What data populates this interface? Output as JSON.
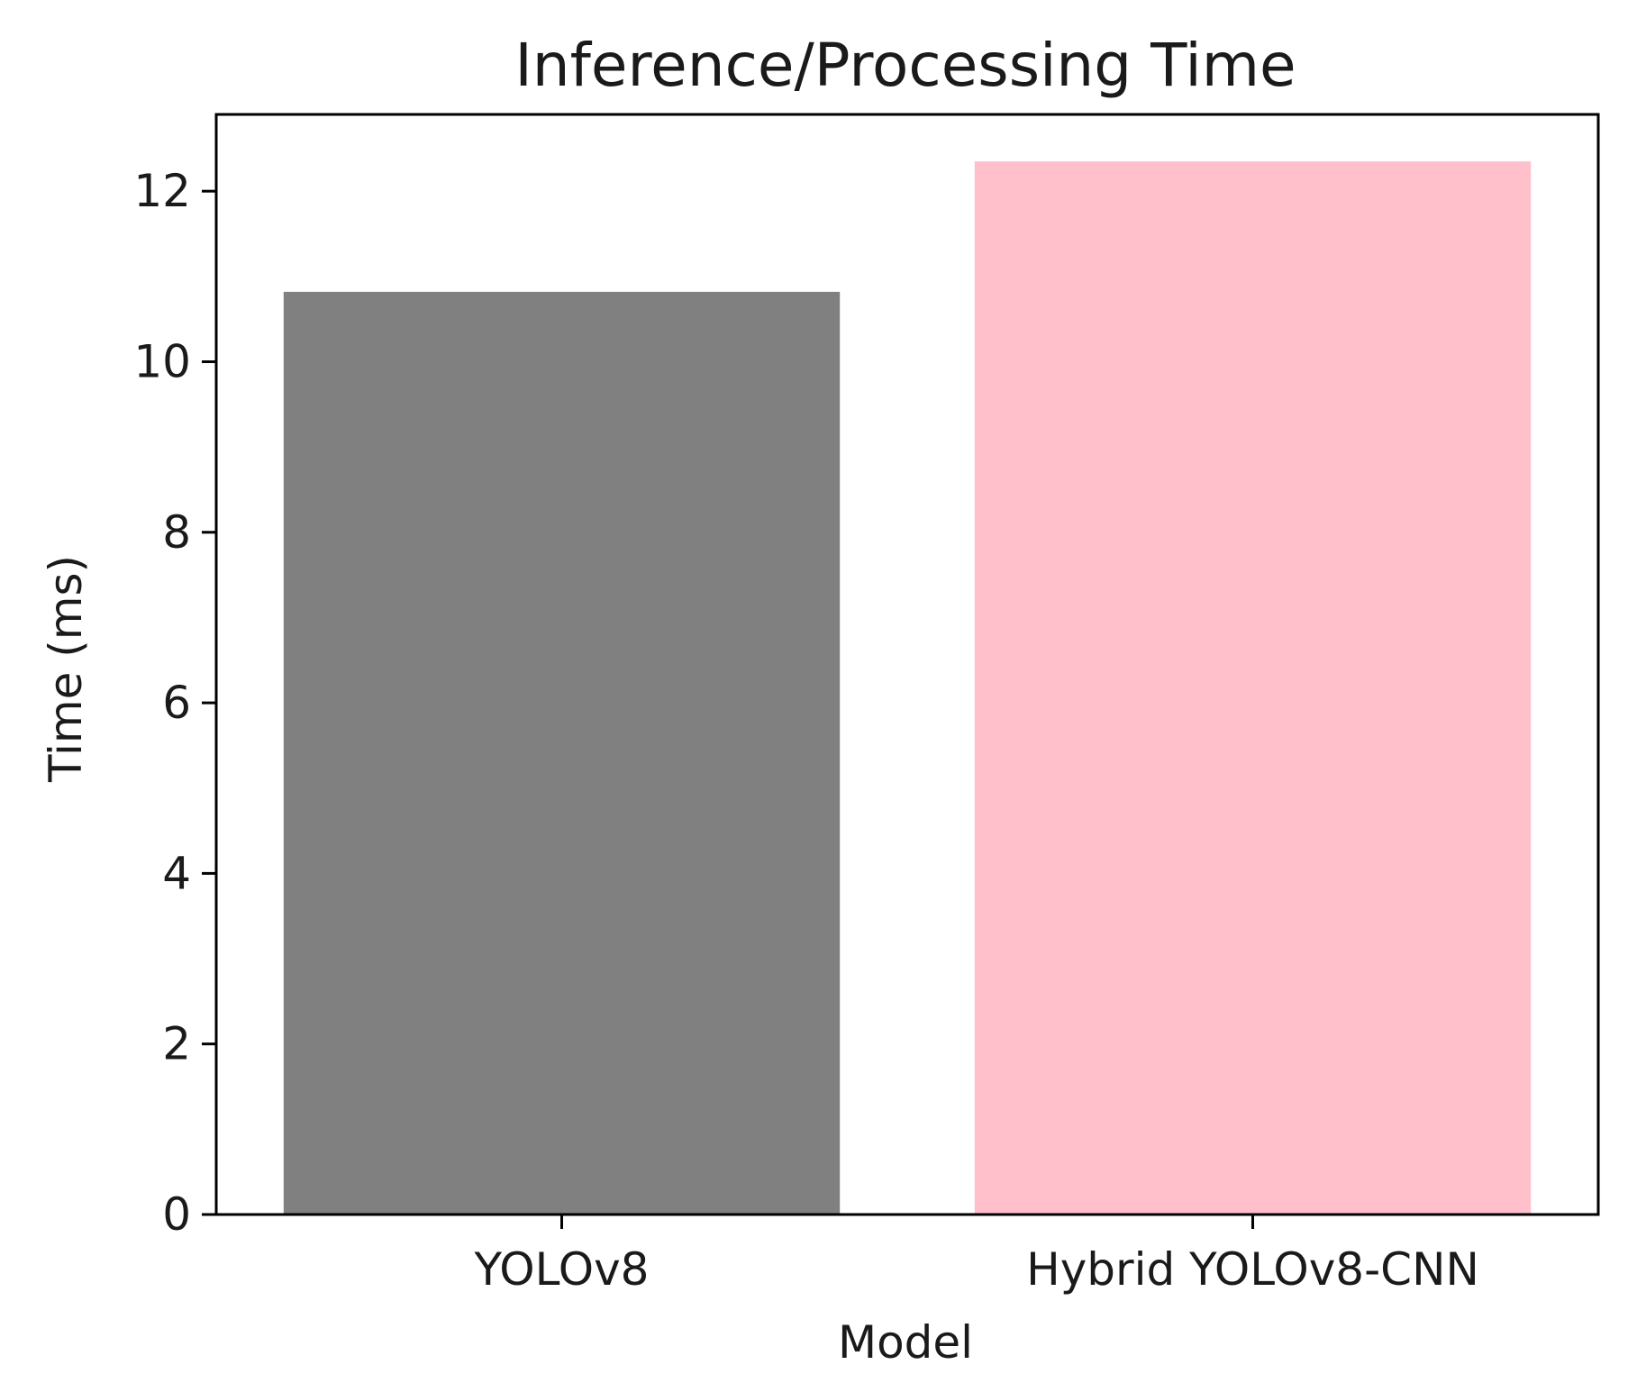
{
  "chart_data": {
    "type": "bar",
    "title": "Inference/Processing Time",
    "xlabel": "Model",
    "ylabel": "Time (ms)",
    "categories": [
      "YOLOv8",
      "Hybrid YOLOv8-CNN"
    ],
    "values": [
      10.82,
      12.35
    ],
    "colors": [
      "#808080",
      "#ffc0cb"
    ],
    "ylim": [
      0,
      12.9
    ],
    "yticks": [
      0,
      2,
      4,
      6,
      8,
      10,
      12
    ],
    "ytick_labels": [
      "0",
      "2",
      "4",
      "6",
      "8",
      "10",
      "12"
    ],
    "grid": false,
    "legend": "none"
  }
}
